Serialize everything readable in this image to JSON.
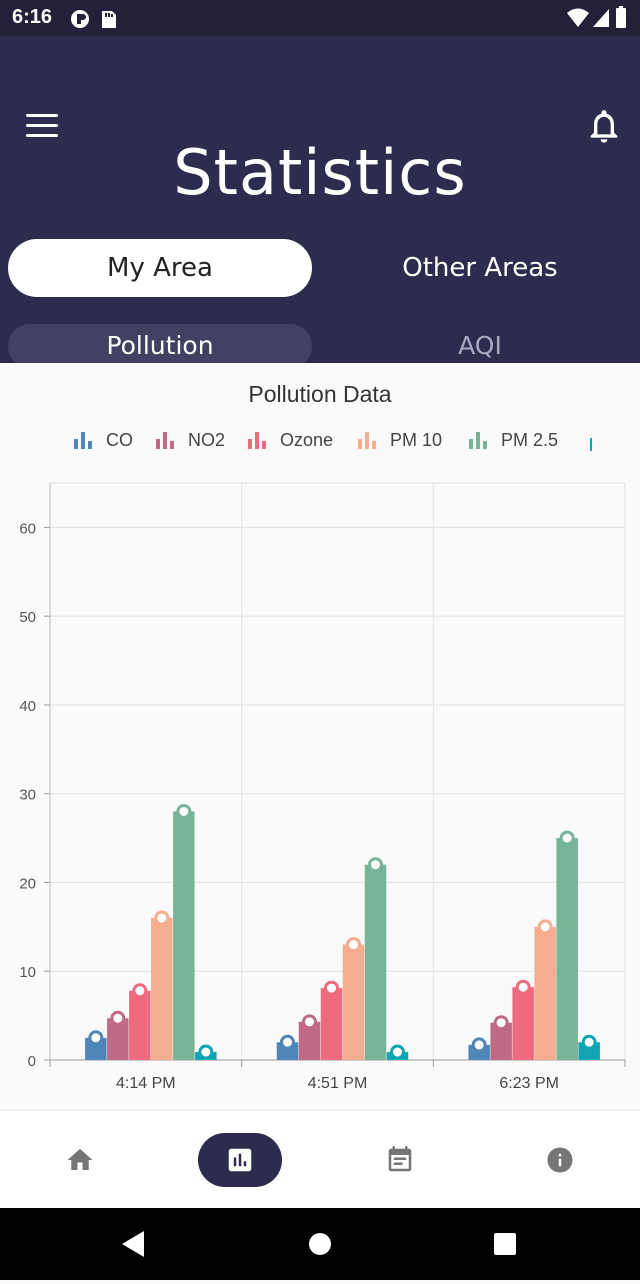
{
  "status_bar": {
    "time": "6:16"
  },
  "header": {
    "title": "Statistics",
    "tabs": [
      {
        "label": "My Area",
        "active": true
      },
      {
        "label": "Other Areas",
        "active": false
      }
    ],
    "sub_tabs": [
      {
        "label": "Pollution",
        "active": true
      },
      {
        "label": "AQI",
        "active": false
      }
    ]
  },
  "colors": {
    "header_bg": "#2e2c4e",
    "accent": "#2e2c4e",
    "co": "#4f86b8",
    "no2": "#c06b86",
    "ozone": "#ee6b7e",
    "pm10": "#f6ac8e",
    "pm25": "#77b498",
    "other": "#11a5b4"
  },
  "chart_data": {
    "type": "bar",
    "title": "Pollution Data",
    "categories": [
      "4:14 PM",
      "4:51 PM",
      "6:23 PM"
    ],
    "ylim": [
      0,
      65
    ],
    "yticks": [
      0,
      10,
      20,
      30,
      40,
      50,
      60
    ],
    "grid": true,
    "legend_position": "top",
    "series": [
      {
        "name": "CO",
        "values": [
          2.5,
          2.0,
          1.7
        ],
        "color": "#4f86b8"
      },
      {
        "name": "NO2",
        "values": [
          4.7,
          4.3,
          4.2
        ],
        "color": "#c06b86"
      },
      {
        "name": "Ozone",
        "values": [
          7.8,
          8.1,
          8.2
        ],
        "color": "#ee6b7e"
      },
      {
        "name": "PM 10",
        "values": [
          16.0,
          13.0,
          15.0
        ],
        "color": "#f6ac8e"
      },
      {
        "name": "PM 2.5",
        "values": [
          28.0,
          22.0,
          25.0
        ],
        "color": "#77b498"
      },
      {
        "name": "",
        "values": [
          0.9,
          0.9,
          2.0
        ],
        "color": "#11a5b4"
      }
    ]
  },
  "bottom_nav": {
    "items": [
      {
        "icon": "home-icon",
        "active": false
      },
      {
        "icon": "chart-icon",
        "active": true
      },
      {
        "icon": "calendar-icon",
        "active": false
      },
      {
        "icon": "info-icon",
        "active": false
      }
    ]
  }
}
